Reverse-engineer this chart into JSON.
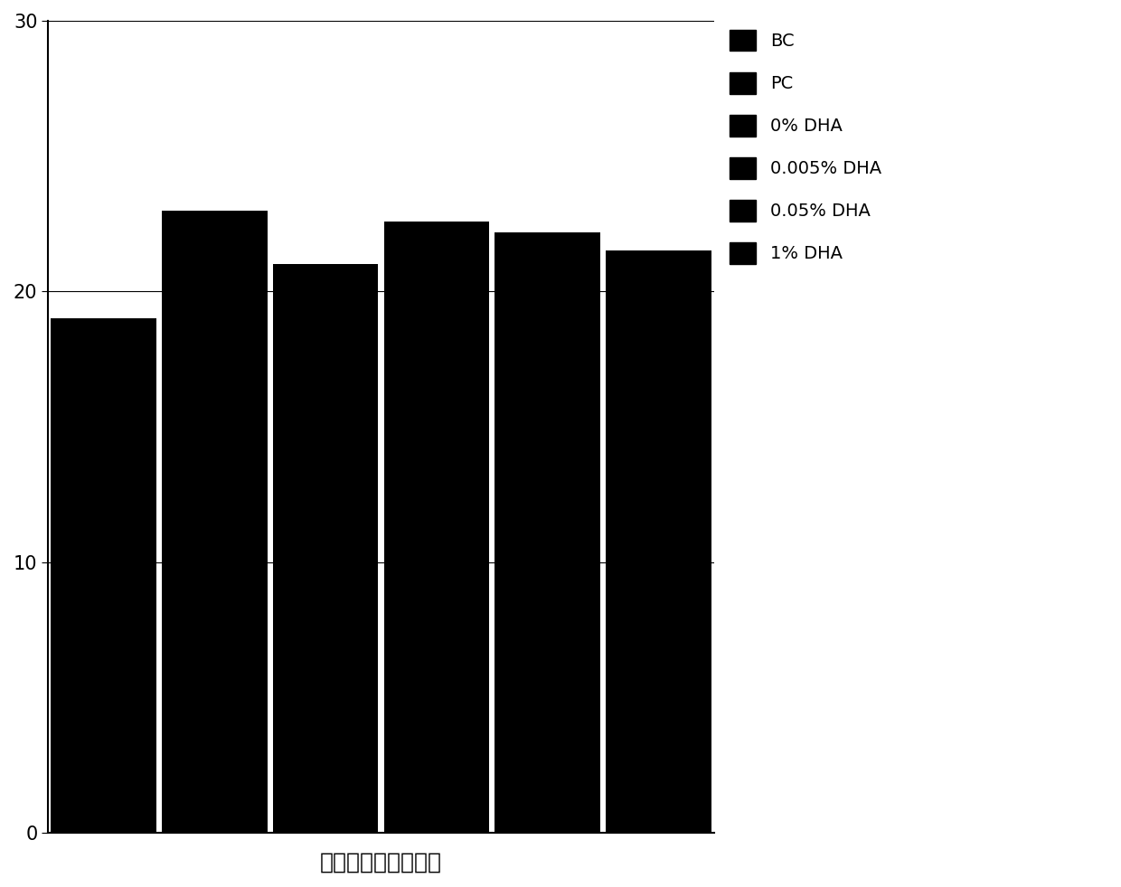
{
  "series": [
    {
      "label": "BC",
      "value": 19.0
    },
    {
      "label": "PC",
      "value": 23.0
    },
    {
      "label": "0% DHA",
      "value": 21.0
    },
    {
      "label": "0.005% DHA",
      "value": 22.6
    },
    {
      "label": "0.05% DHA",
      "value": 22.2
    },
    {
      "label": "1% DHA",
      "value": 21.5
    }
  ],
  "bar_color": "#000000",
  "ylim": [
    0,
    30
  ],
  "yticks": [
    0,
    10,
    20,
    30
  ],
  "xlabel": "脂肪酸平均碳链长度",
  "background_color": "#ffffff",
  "bar_width": 0.95,
  "legend_fontsize": 14,
  "tick_fontsize": 15,
  "xlabel_fontsize": 18
}
